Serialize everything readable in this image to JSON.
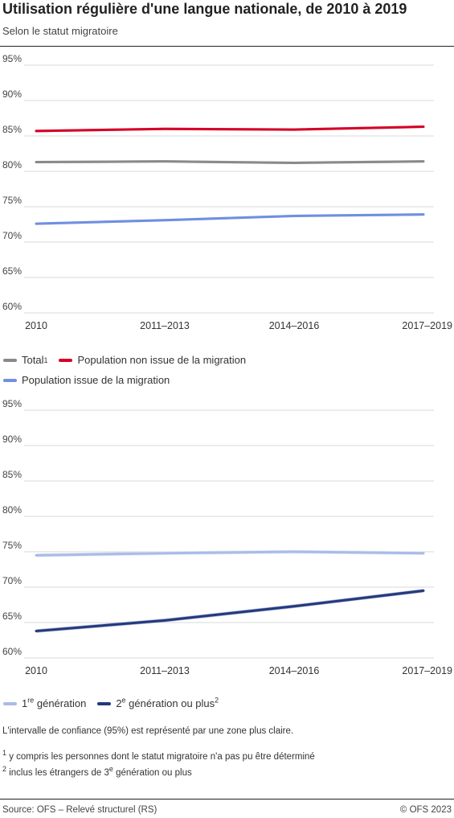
{
  "title": "Utilisation régulière d'une langue nationale, de 2010 à 2019",
  "subtitle": "Selon le statut migratoire",
  "chart_data": [
    {
      "type": "line",
      "categories": [
        "2010",
        "2011–2013",
        "2014–2016",
        "2017–2019"
      ],
      "ylim": [
        60,
        95
      ],
      "yticks": [
        "60%",
        "65%",
        "70%",
        "75%",
        "80%",
        "85%",
        "90%",
        "95%"
      ],
      "grid": true,
      "series": [
        {
          "name": "Total",
          "color": "#8a8a8a",
          "ci_color": "#cccccc",
          "values": [
            81.3,
            81.4,
            81.2,
            81.4
          ]
        },
        {
          "name": "Population non issue de la migration",
          "color": "#d40026",
          "ci_color": "#f0a4b0",
          "values": [
            85.7,
            86.0,
            85.9,
            86.3
          ]
        },
        {
          "name": "Population issue de la migration",
          "color": "#6f8fe0",
          "ci_color": "#c5d2f3",
          "values": [
            72.6,
            73.1,
            73.7,
            73.9
          ]
        }
      ]
    },
    {
      "type": "line",
      "categories": [
        "2010",
        "2011–2013",
        "2014–2016",
        "2017–2019"
      ],
      "ylim": [
        60,
        95
      ],
      "yticks": [
        "60%",
        "65%",
        "70%",
        "75%",
        "80%",
        "85%",
        "90%",
        "95%"
      ],
      "grid": true,
      "series": [
        {
          "name": "1re génération",
          "color": "#a9bce8",
          "ci_color": "#dde5f7",
          "values": [
            74.5,
            74.8,
            75.0,
            74.8
          ]
        },
        {
          "name": "2e génération ou plus",
          "color": "#24397e",
          "ci_color": "#a8b3d3",
          "values": [
            63.8,
            65.3,
            67.3,
            69.5
          ]
        }
      ]
    }
  ],
  "legend1": {
    "total": "Total",
    "total_sup": "1",
    "non_migr": "Population non issue de la migration",
    "migr": "Population issue de la migration"
  },
  "legend2": {
    "gen1_num": "1",
    "gen1_sup": "re",
    "gen1_text": " génération",
    "gen2_num": "2",
    "gen2_sup": "e",
    "gen2_text": " génération ou plus",
    "gen2_fn": "2"
  },
  "notes": {
    "ci": "L'intervalle de confiance (95%) est représenté par une zone plus claire.",
    "fn1_num": "1",
    "fn1_text": " y compris les personnes dont le statut migratoire n'a pas pu être déterminé",
    "fn2_num": "2",
    "fn2_text_a": " inclus les étrangers de 3",
    "fn2_sup": "e",
    "fn2_text_b": " génération ou plus"
  },
  "footer": {
    "source": "Source: OFS – Relevé structurel (RS)",
    "copyright": "© OFS 2023"
  }
}
